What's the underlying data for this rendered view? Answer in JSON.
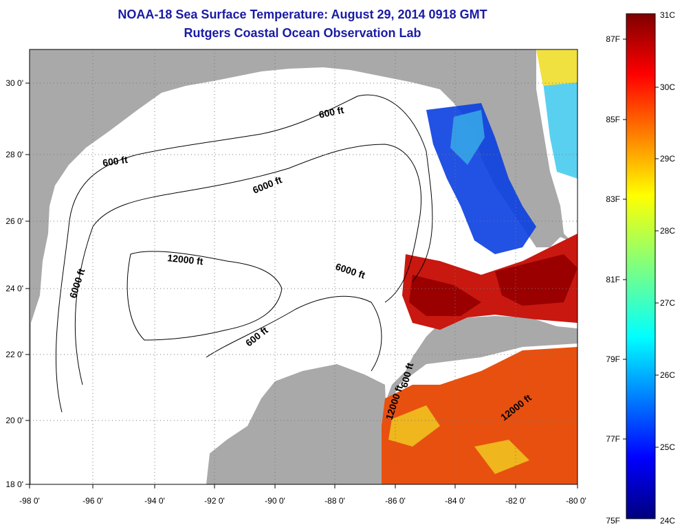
{
  "title": {
    "line1": "NOAA-18 Sea Surface Temperature:  August 29, 2014 0918 GMT",
    "line2": "Rutgers Coastal Ocean Observation Lab"
  },
  "axes": {
    "lon_labels": [
      "-98 0'",
      "-96 0'",
      "-94 0'",
      "-92 0'",
      "-90 0'",
      "-88 0'",
      "-86 0'",
      "-84 0'",
      "-82 0'",
      "-80 0'"
    ],
    "lat_labels": [
      "30 0'",
      "28 0'",
      "26 0'",
      "24 0'",
      "22 0'",
      "20 0'",
      "18 0'"
    ]
  },
  "contours": [
    {
      "label": "600 ft"
    },
    {
      "label": "600 ft"
    },
    {
      "label": "6000 ft"
    },
    {
      "label": "6000 ft"
    },
    {
      "label": "6000 ft"
    },
    {
      "label": "12000 ft"
    },
    {
      "label": "600 ft"
    },
    {
      "label": "12000 ft"
    },
    {
      "label": "12000 ft"
    },
    {
      "label": "600 ft"
    }
  ],
  "colorbar": {
    "celsius": [
      "31C",
      "30C",
      "29C",
      "28C",
      "27C",
      "26C",
      "25C",
      "24C"
    ],
    "fahrenheit": [
      "87F",
      "85F",
      "83F",
      "81F",
      "79F",
      "77F",
      "75F"
    ]
  },
  "colors": {
    "land": "#a9a9a9",
    "title": "#1a1aa6",
    "grid": "#777777"
  }
}
